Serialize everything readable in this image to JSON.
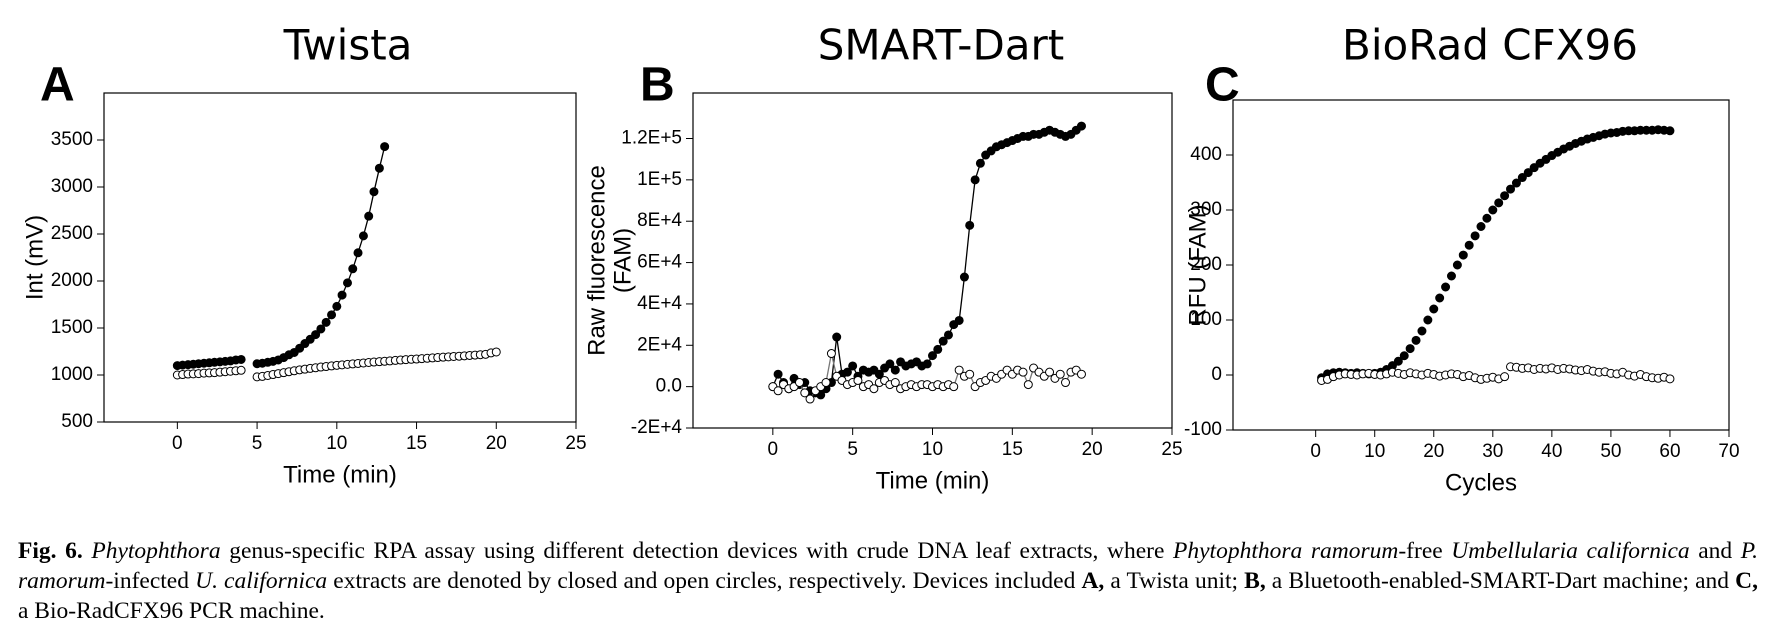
{
  "chart_data": [
    {
      "type": "scatter",
      "panel": "A",
      "title": "Twista",
      "xlabel": "Time (min)",
      "ylabel": [
        "Int (mV)"
      ],
      "xlim": [
        -4.6,
        25
      ],
      "xticks": [
        0,
        5,
        10,
        15,
        20,
        25
      ],
      "ylim": [
        500,
        4000
      ],
      "yticks": [
        500,
        1000,
        1500,
        2000,
        2500,
        3000,
        3500
      ],
      "x": [
        0,
        0.33,
        0.67,
        1,
        1.33,
        1.67,
        2,
        2.33,
        2.67,
        3,
        3.33,
        3.67,
        4,
        4.33,
        4.67,
        5,
        5.33,
        5.67,
        6,
        6.33,
        6.67,
        7,
        7.33,
        7.67,
        8,
        8.33,
        8.67,
        9,
        9.33,
        9.67,
        10,
        10.33,
        10.67,
        11,
        11.33,
        11.67,
        12,
        12.33,
        12.67,
        13,
        13.33,
        13.67,
        14,
        14.33,
        14.67,
        15,
        15.33,
        15.67,
        16,
        16.33,
        16.67,
        17,
        17.33,
        17.67,
        18,
        18.33,
        18.67,
        19,
        19.33,
        19.67,
        20
      ],
      "series": [
        {
          "color": "#000000",
          "fill": "#000000",
          "line": true,
          "values": [
            1100,
            1105,
            1110,
            1115,
            1120,
            1125,
            1130,
            1135,
            1140,
            1145,
            1150,
            1160,
            1165,
            null,
            null,
            1120,
            1125,
            1135,
            1145,
            1160,
            1185,
            1215,
            1240,
            1285,
            1335,
            1380,
            1430,
            1490,
            1560,
            1640,
            1730,
            1850,
            1980,
            2130,
            2300,
            2480,
            2690,
            2950,
            3200,
            3430,
            null,
            null,
            null,
            null,
            null,
            null,
            null,
            null,
            null,
            null,
            null,
            null,
            null,
            null,
            null,
            null,
            null,
            null,
            null,
            null,
            null
          ]
        },
        {
          "color": "#000000",
          "fill": "#ffffff",
          "line": false,
          "values": [
            1000,
            1005,
            1010,
            1012,
            1015,
            1020,
            1022,
            1025,
            1030,
            1035,
            1040,
            1045,
            1050,
            null,
            null,
            980,
            985,
            995,
            1005,
            1015,
            1025,
            1035,
            1045,
            1055,
            1062,
            1070,
            1077,
            1085,
            1090,
            1097,
            1103,
            1108,
            1113,
            1118,
            1123,
            1128,
            1133,
            1138,
            1142,
            1146,
            1150,
            1155,
            1159,
            1163,
            1167,
            1170,
            1174,
            1178,
            1182,
            1186,
            1190,
            1193,
            1197,
            1200,
            1204,
            1208,
            1212,
            1216,
            1220,
            1235,
            1245
          ]
        }
      ]
    },
    {
      "type": "scatter",
      "panel": "B",
      "title": "SMART-Dart",
      "xlabel": "Time (min)",
      "ylabel": [
        "Raw fluorescence",
        "(FAM)"
      ],
      "xlim": [
        -5,
        25
      ],
      "xticks": [
        0,
        5,
        10,
        15,
        20,
        25
      ],
      "ylim": [
        -20000,
        142000
      ],
      "yticks": [
        {
          "value": -20000,
          "label": "-2E+4"
        },
        {
          "value": 0,
          "label": "0.0"
        },
        {
          "value": 20000,
          "label": "2E+4"
        },
        {
          "value": 40000,
          "label": "4E+4"
        },
        {
          "value": 60000,
          "label": "6E+4"
        },
        {
          "value": 80000,
          "label": "8E+4"
        },
        {
          "value": 100000,
          "label": "1E+5"
        },
        {
          "value": 120000,
          "label": "1.2E+5"
        }
      ],
      "x": [
        0,
        0.33,
        0.67,
        1,
        1.33,
        1.67,
        2,
        2.33,
        2.67,
        3,
        3.33,
        3.67,
        4,
        4.33,
        4.67,
        5,
        5.33,
        5.67,
        6,
        6.33,
        6.67,
        7,
        7.33,
        7.67,
        8,
        8.33,
        8.67,
        9,
        9.33,
        9.67,
        10,
        10.33,
        10.67,
        11,
        11.33,
        11.67,
        12,
        12.33,
        12.67,
        13,
        13.33,
        13.67,
        14,
        14.33,
        14.67,
        15,
        15.33,
        15.67,
        16,
        16.33,
        16.67,
        17,
        17.33,
        17.67,
        18,
        18.33,
        18.67,
        19,
        19.33
      ],
      "series": [
        {
          "color": "#000000",
          "fill": "#000000",
          "line": true,
          "values": [
            0,
            6000,
            2000,
            -1000,
            4000,
            1000,
            2000,
            -2000,
            -3000,
            -4000,
            -1000,
            2000,
            24000,
            6000,
            7000,
            10000,
            5000,
            8000,
            7000,
            8000,
            6000,
            9000,
            11000,
            8000,
            12000,
            10000,
            11000,
            12000,
            10000,
            11000,
            15000,
            18000,
            22000,
            25000,
            30000,
            32000,
            53000,
            78000,
            100000,
            108000,
            112000,
            114000,
            116000,
            117000,
            118000,
            119000,
            120000,
            121000,
            121000,
            122000,
            122000,
            123000,
            124000,
            123000,
            122000,
            121000,
            122000,
            124000,
            126000
          ]
        },
        {
          "color": "#777777",
          "fill": "#ffffff",
          "line": true,
          "values": [
            0,
            -2000,
            1000,
            -1000,
            0,
            2000,
            -3000,
            -6000,
            -2000,
            0,
            2000,
            16000,
            5000,
            3000,
            1000,
            2000,
            3000,
            0,
            1000,
            -1000,
            2000,
            3000,
            1000,
            2000,
            -1000,
            0,
            1000,
            0,
            1000,
            1000,
            0,
            1000,
            0,
            1000,
            0,
            8000,
            5000,
            6000,
            0,
            2000,
            3000,
            5000,
            4000,
            6000,
            8000,
            6000,
            8000,
            7000,
            1000,
            9000,
            7000,
            5000,
            7000,
            4000,
            6000,
            2000,
            7000,
            8000,
            6000
          ]
        }
      ]
    },
    {
      "type": "scatter",
      "panel": "C",
      "title": "BioRad CFX96",
      "xlabel": "Cycles",
      "ylabel": [
        "RFU (FAM)"
      ],
      "xlim": [
        -14,
        70
      ],
      "xticks": [
        0,
        10,
        20,
        30,
        40,
        50,
        60,
        70
      ],
      "ylim": [
        -100,
        500
      ],
      "yticks": [
        -100,
        0,
        100,
        200,
        300,
        400
      ],
      "x": [
        1,
        2,
        3,
        4,
        5,
        6,
        7,
        8,
        9,
        10,
        11,
        12,
        13,
        14,
        15,
        16,
        17,
        18,
        19,
        20,
        21,
        22,
        23,
        24,
        25,
        26,
        27,
        28,
        29,
        30,
        31,
        32,
        33,
        34,
        35,
        36,
        37,
        38,
        39,
        40,
        41,
        42,
        43,
        44,
        45,
        46,
        47,
        48,
        49,
        50,
        51,
        52,
        53,
        54,
        55,
        56,
        57,
        58,
        59,
        60
      ],
      "series": [
        {
          "color": "#000000",
          "fill": "#000000",
          "line": false,
          "values": [
            -5,
            2,
            4,
            5,
            4,
            3,
            4,
            3,
            2,
            3,
            5,
            10,
            17,
            25,
            35,
            48,
            63,
            80,
            100,
            120,
            140,
            160,
            180,
            200,
            218,
            236,
            253,
            270,
            285,
            300,
            313,
            326,
            338,
            349,
            359,
            368,
            377,
            385,
            392,
            399,
            405,
            411,
            416,
            421,
            425,
            429,
            432,
            435,
            438,
            440,
            441,
            443,
            444,
            444,
            445,
            445,
            445,
            446,
            445,
            444
          ]
        },
        {
          "color": "#000000",
          "fill": "#ffffff",
          "line": false,
          "values": [
            -10,
            -8,
            -3,
            0,
            2,
            1,
            0,
            2,
            3,
            1,
            0,
            2,
            5,
            3,
            1,
            4,
            2,
            0,
            3,
            1,
            -2,
            0,
            2,
            1,
            -3,
            -1,
            -5,
            -8,
            -6,
            -4,
            -7,
            -3,
            15,
            14,
            12,
            13,
            10,
            12,
            11,
            13,
            10,
            12,
            11,
            9,
            8,
            10,
            7,
            5,
            6,
            3,
            2,
            5,
            0,
            -2,
            1,
            -3,
            -5,
            -6,
            -4,
            -7
          ]
        }
      ]
    }
  ],
  "caption": [
    {
      "text": "Fig. 6.",
      "style": "bold"
    },
    {
      "text": " ",
      "style": "normal"
    },
    {
      "text": "Phytophthora",
      "style": "italic"
    },
    {
      "text": " genus-specific RPA assay using different detection devices with crude DNA leaf extracts, where ",
      "style": "normal"
    },
    {
      "text": "Phytophthora ramorum",
      "style": "italic"
    },
    {
      "text": "-free ",
      "style": "normal"
    },
    {
      "text": "Umbellularia californica",
      "style": "italic"
    },
    {
      "text": " and ",
      "style": "normal"
    },
    {
      "text": "P. ramorum",
      "style": "italic"
    },
    {
      "text": "-infected ",
      "style": "normal"
    },
    {
      "text": "U. californica",
      "style": "italic"
    },
    {
      "text": " extracts are denoted by closed and open circles, respectively. Devices included ",
      "style": "normal"
    },
    {
      "text": "A,",
      "style": "bold"
    },
    {
      "text": " a Twista unit; ",
      "style": "normal"
    },
    {
      "text": "B,",
      "style": "bold"
    },
    {
      "text": " a Bluetooth-enabled-SMART-Dart machine; and ",
      "style": "normal"
    },
    {
      "text": "C,",
      "style": "bold"
    },
    {
      "text": " a Bio-RadCFX96 PCR machine.",
      "style": "normal"
    }
  ]
}
